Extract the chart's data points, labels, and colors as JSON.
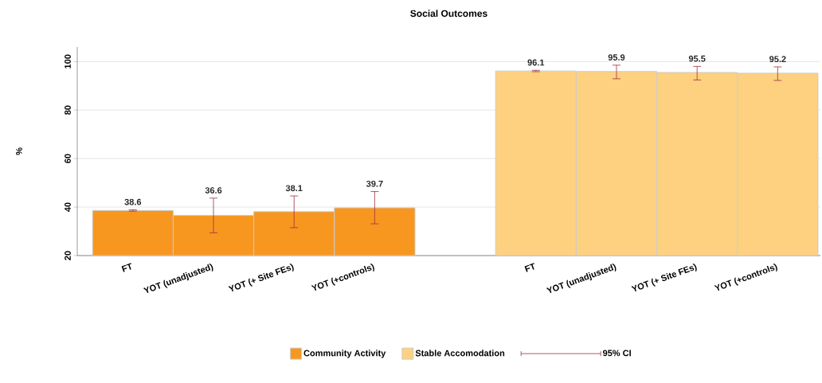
{
  "chart_data": {
    "type": "bar",
    "title": "Social Outcomes",
    "ylabel": "%",
    "categories": [
      "FT",
      "YOT (unadjusted)",
      "YOT (+ Site FEs)",
      "YOT (+controls)",
      null,
      "FT",
      "YOT (unadjusted)",
      "YOT (+ Site FEs)",
      "YOT (+controls)"
    ],
    "series": [
      {
        "name": "Community Activity",
        "color": "#f7971f",
        "values": [
          38.6,
          36.6,
          38.1,
          39.7,
          null,
          null,
          null,
          null,
          null
        ],
        "errors": [
          [
            38.3,
            38.9
          ],
          [
            29.4,
            43.7
          ],
          [
            31.5,
            44.6
          ],
          [
            33.1,
            46.4
          ],
          null,
          null,
          null,
          null,
          null
        ]
      },
      {
        "name": "Stable Accomodation",
        "color": "#fdd17f",
        "values": [
          null,
          null,
          null,
          null,
          null,
          96.1,
          95.9,
          95.5,
          95.2
        ],
        "errors": [
          null,
          null,
          null,
          null,
          null,
          [
            95.8,
            96.4
          ],
          [
            92.9,
            98.5
          ],
          [
            92.4,
            98.0
          ],
          [
            92.2,
            97.8
          ]
        ]
      }
    ],
    "annotations": [
      "95% CI"
    ],
    "ylim": [
      20,
      106
    ],
    "yticks": [
      20,
      40,
      60,
      80,
      100
    ],
    "grid": "y",
    "legend": "bottom",
    "data_labels": true
  }
}
